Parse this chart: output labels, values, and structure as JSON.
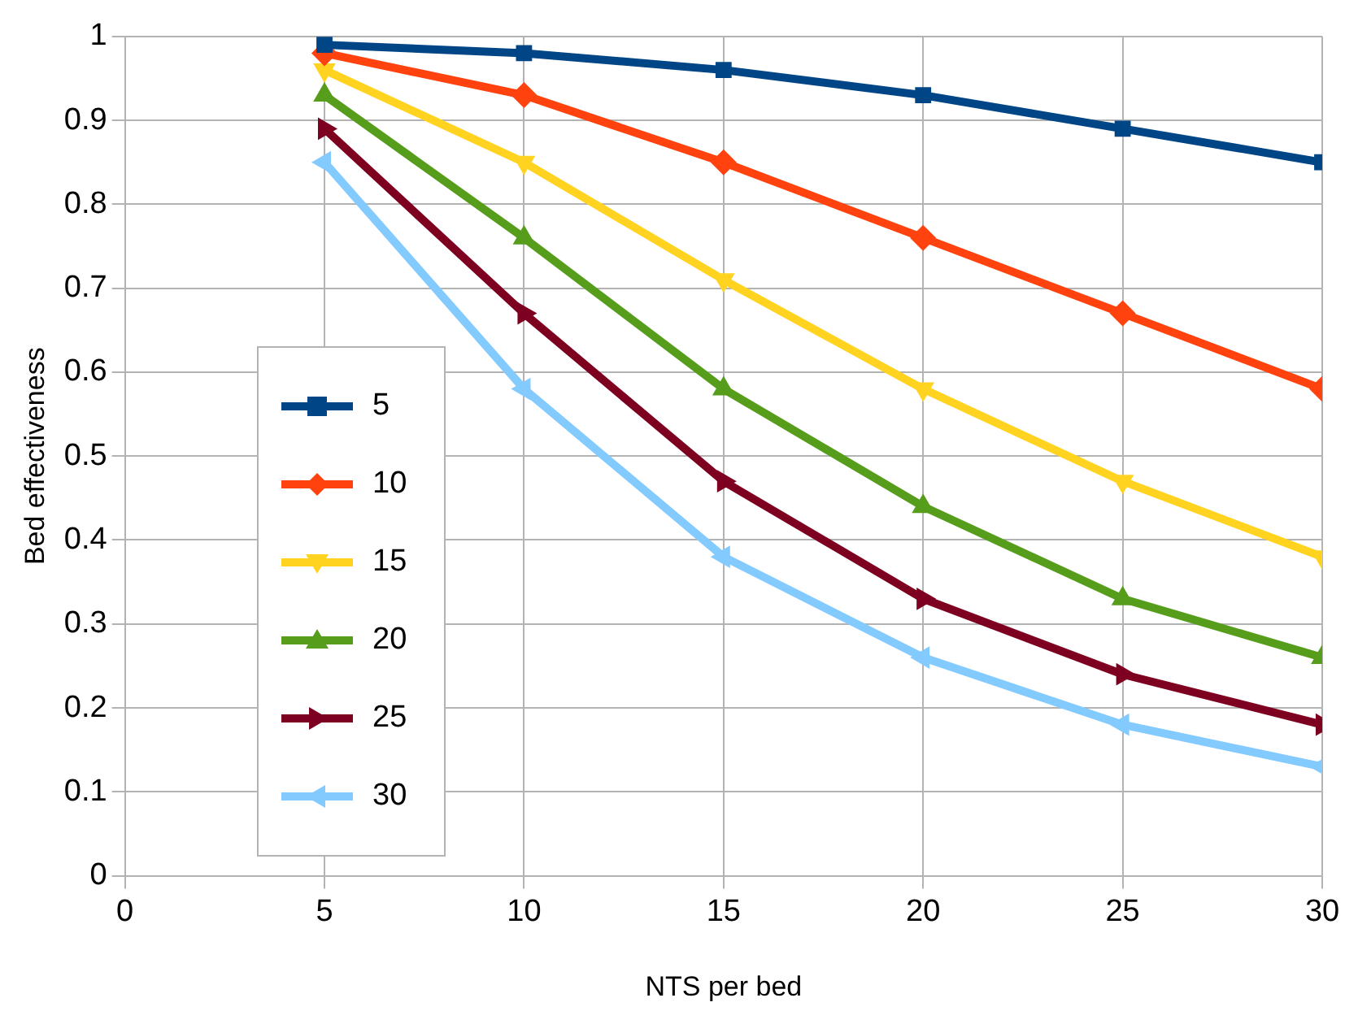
{
  "chart_data": {
    "type": "line",
    "xlabel": "NTS per bed",
    "ylabel": "Bed effectiveness",
    "x": [
      5,
      10,
      15,
      20,
      25,
      30
    ],
    "series": [
      {
        "name": "5",
        "color": "#004586",
        "marker": "square",
        "values": [
          0.99,
          0.98,
          0.96,
          0.93,
          0.89,
          0.85
        ]
      },
      {
        "name": "10",
        "color": "#ff420e",
        "marker": "diamond",
        "values": [
          0.98,
          0.93,
          0.85,
          0.76,
          0.67,
          0.58
        ]
      },
      {
        "name": "15",
        "color": "#ffd320",
        "marker": "triangle",
        "values": [
          0.96,
          0.85,
          0.71,
          0.58,
          0.47,
          0.38
        ]
      },
      {
        "name": "20",
        "color": "#579d1c",
        "marker": "triangle",
        "values": [
          0.93,
          0.76,
          0.58,
          0.44,
          0.33,
          0.26
        ]
      },
      {
        "name": "25",
        "color": "#7e0021",
        "marker": "triangle",
        "values": [
          0.89,
          0.67,
          0.47,
          0.33,
          0.24,
          0.18
        ]
      },
      {
        "name": "30",
        "color": "#83caff",
        "marker": "triangle",
        "values": [
          0.85,
          0.58,
          0.38,
          0.26,
          0.18,
          0.13
        ]
      }
    ],
    "xlim": [
      0,
      30
    ],
    "xticks": [
      0,
      5,
      10,
      15,
      20,
      25,
      30
    ],
    "ylim": [
      0,
      1
    ],
    "yticks": [
      0,
      0.1,
      0.2,
      0.3,
      0.4,
      0.5,
      0.6,
      0.7,
      0.8,
      0.9,
      1
    ],
    "grid": true,
    "legend": "left",
    "line_style": "solid"
  }
}
